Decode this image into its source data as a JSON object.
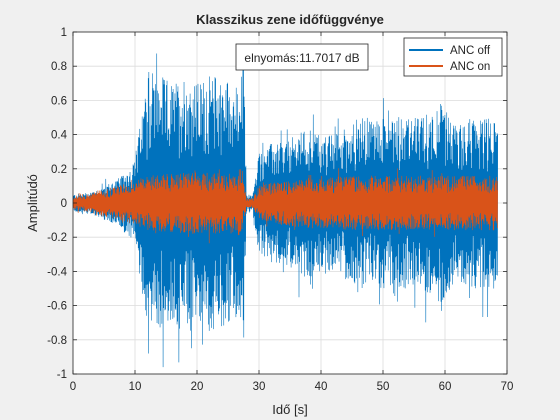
{
  "chart_data": {
    "type": "line",
    "title": "Klasszikus zene időfüggvénye",
    "xlabel": "Idő [s]",
    "ylabel": "Amplitúdó",
    "xlim": [
      0,
      70
    ],
    "ylim": [
      -1,
      1
    ],
    "xticks": [
      "0",
      "10",
      "20",
      "30",
      "40",
      "50",
      "60",
      "70"
    ],
    "yticks": [
      "-1",
      "-0.8",
      "-0.6",
      "-0.4",
      "-0.2",
      "0",
      "0.2",
      "0.4",
      "0.6",
      "0.8",
      "1"
    ],
    "grid": true,
    "legend_position": "top-right",
    "annotation": "elnyomás:11.7017 dB",
    "series": [
      {
        "name": "ANC off",
        "color": "#0072BD",
        "envelope": {
          "t": [
            0,
            2,
            4,
            6,
            8,
            10,
            11,
            12,
            14,
            16,
            18,
            20,
            22,
            24,
            26,
            27,
            27.5,
            28,
            29,
            30,
            32,
            34,
            36,
            38,
            40,
            42,
            44,
            46,
            48,
            50,
            52,
            54,
            56,
            58,
            59,
            60,
            61,
            62,
            64,
            66,
            68,
            68.5
          ],
          "amp": [
            0.05,
            0.06,
            0.08,
            0.12,
            0.16,
            0.25,
            0.5,
            0.7,
            0.75,
            0.7,
            0.75,
            0.7,
            0.75,
            0.75,
            0.7,
            0.65,
            0.9,
            0.05,
            0.05,
            0.3,
            0.35,
            0.35,
            0.4,
            0.45,
            0.4,
            0.4,
            0.45,
            0.5,
            0.5,
            0.5,
            0.55,
            0.5,
            0.5,
            0.55,
            0.6,
            0.55,
            0.5,
            0.45,
            0.5,
            0.5,
            0.5,
            0.5
          ]
        }
      },
      {
        "name": "ANC on",
        "color": "#D95319",
        "envelope": {
          "t": [
            0,
            2,
            4,
            6,
            8,
            10,
            12,
            14,
            16,
            18,
            20,
            22,
            24,
            26,
            27,
            28,
            29,
            30,
            32,
            34,
            36,
            38,
            40,
            42,
            44,
            46,
            48,
            50,
            52,
            54,
            56,
            58,
            60,
            62,
            64,
            66,
            68,
            68.5
          ],
          "amp": [
            0.04,
            0.05,
            0.07,
            0.09,
            0.11,
            0.13,
            0.16,
            0.17,
            0.17,
            0.18,
            0.18,
            0.18,
            0.18,
            0.18,
            0.2,
            0.03,
            0.03,
            0.1,
            0.12,
            0.13,
            0.14,
            0.15,
            0.15,
            0.15,
            0.16,
            0.16,
            0.16,
            0.16,
            0.16,
            0.16,
            0.16,
            0.16,
            0.16,
            0.16,
            0.16,
            0.16,
            0.16,
            0.16
          ]
        }
      }
    ]
  }
}
